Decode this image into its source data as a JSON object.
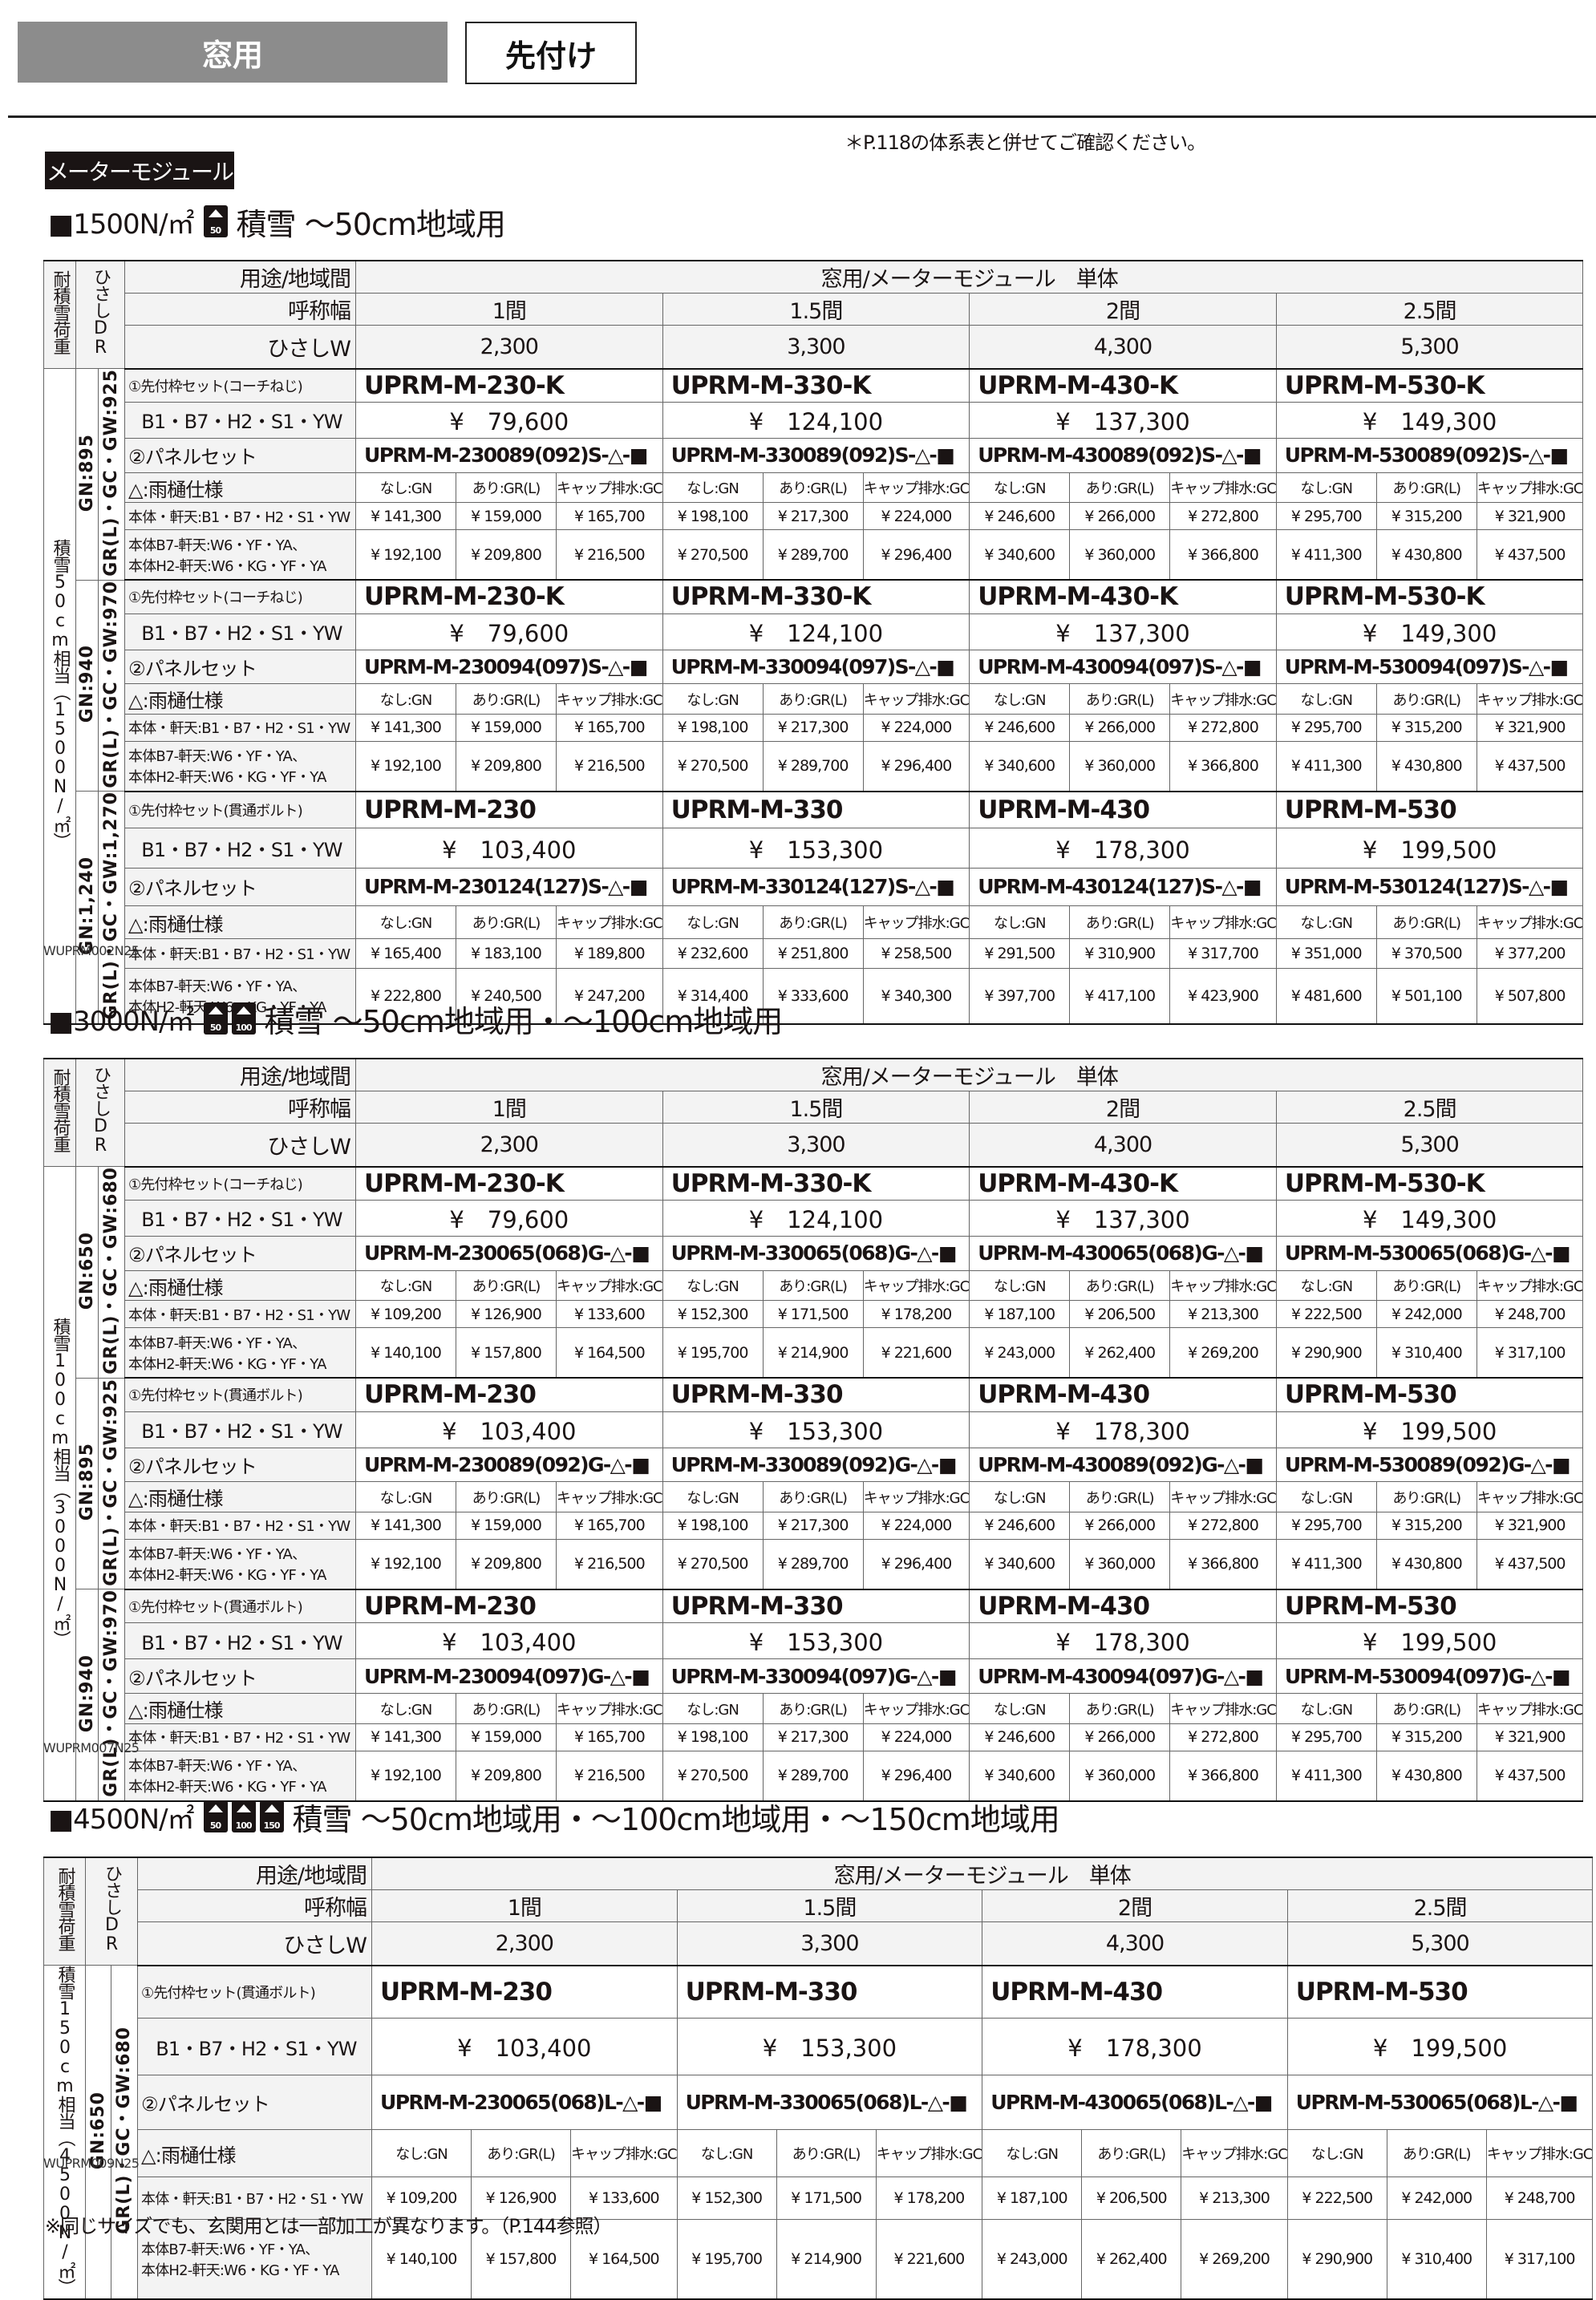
{
  "tabs": {
    "active": "窓用",
    "secondary": "先付け"
  },
  "note": "＊P.118の体系表と併せてご確認ください。",
  "module_label": "メーターモジュール",
  "footer_note": "※同じサイズでも、玄関用とは一部加工が異なります。（P.144参照）",
  "common": {
    "load_label": "耐積雪荷重",
    "dr_label": "ひさしDR",
    "usage_label": "用途/地域間",
    "usage_value": "窓用/メーターモジュール　単体",
    "width_label": "呼称幅",
    "widths": [
      "1間",
      "1.5間",
      "2間",
      "2.5間"
    ],
    "w_label": "ひさしW",
    "w_values": [
      "2,300",
      "3,300",
      "4,300",
      "5,300"
    ],
    "color_label": "B1・B7・H2・S1・YW",
    "panel_label": "②パネルセット",
    "gutter_label": "△:雨樋仕様",
    "gutter_options": [
      "なし:GN",
      "あり:GR(L)",
      "キャップ排水:GC"
    ],
    "price1_label": "本体・軒天:B1・B7・H2・S1・YW",
    "price2_label_1": "本体B7-軒天:W6・YF・YA、",
    "price2_label_2": "本体H2-軒天:W6・KG・YF・YA"
  },
  "tables": [
    {
      "heading_prefix": "■1500N/㎡",
      "badges": [
        "50"
      ],
      "heading_text": "積雪 〜50cm地域用",
      "load_text": "積雪50cm相当（1500N/㎡）",
      "code": "WUPRM002N25",
      "blocks": [
        {
          "dr": "GN:895",
          "gw": "GR(L)・GC・GW:925",
          "frame_label": "①先付枠セット(コーチねじ)",
          "frame_codes": [
            "UPRM-M-230-K",
            "UPRM-M-330-K",
            "UPRM-M-430-K",
            "UPRM-M-530-K"
          ],
          "frame_prices": [
            "¥　79,600",
            "¥　124,100",
            "¥　137,300",
            "¥　149,300"
          ],
          "panel_codes": [
            "UPRM-M-230089(092)S-△-■",
            "UPRM-M-330089(092)S-△-■",
            "UPRM-M-430089(092)S-△-■",
            "UPRM-M-530089(092)S-△-■"
          ],
          "price1": [
            "¥ 141,300",
            "¥ 159,000",
            "¥ 165,700",
            "¥ 198,100",
            "¥ 217,300",
            "¥ 224,000",
            "¥ 246,600",
            "¥ 266,000",
            "¥ 272,800",
            "¥ 295,700",
            "¥ 315,200",
            "¥ 321,900"
          ],
          "price2": [
            "¥ 192,100",
            "¥ 209,800",
            "¥ 216,500",
            "¥ 270,500",
            "¥ 289,700",
            "¥ 296,400",
            "¥ 340,600",
            "¥ 360,000",
            "¥ 366,800",
            "¥ 411,300",
            "¥ 430,800",
            "¥ 437,500"
          ]
        },
        {
          "dr": "GN:940",
          "gw": "GR(L)・GC・GW:970",
          "frame_label": "①先付枠セット(コーチねじ)",
          "frame_codes": [
            "UPRM-M-230-K",
            "UPRM-M-330-K",
            "UPRM-M-430-K",
            "UPRM-M-530-K"
          ],
          "frame_prices": [
            "¥　79,600",
            "¥　124,100",
            "¥　137,300",
            "¥　149,300"
          ],
          "panel_codes": [
            "UPRM-M-230094(097)S-△-■",
            "UPRM-M-330094(097)S-△-■",
            "UPRM-M-430094(097)S-△-■",
            "UPRM-M-530094(097)S-△-■"
          ],
          "price1": [
            "¥ 141,300",
            "¥ 159,000",
            "¥ 165,700",
            "¥ 198,100",
            "¥ 217,300",
            "¥ 224,000",
            "¥ 246,600",
            "¥ 266,000",
            "¥ 272,800",
            "¥ 295,700",
            "¥ 315,200",
            "¥ 321,900"
          ],
          "price2": [
            "¥ 192,100",
            "¥ 209,800",
            "¥ 216,500",
            "¥ 270,500",
            "¥ 289,700",
            "¥ 296,400",
            "¥ 340,600",
            "¥ 360,000",
            "¥ 366,800",
            "¥ 411,300",
            "¥ 430,800",
            "¥ 437,500"
          ]
        },
        {
          "dr": "GN:1,240",
          "gw": "GR(L)・GC・GW:1,270",
          "frame_label": "①先付枠セット(貫通ボルト)",
          "frame_codes": [
            "UPRM-M-230",
            "UPRM-M-330",
            "UPRM-M-430",
            "UPRM-M-530"
          ],
          "frame_prices": [
            "¥　103,400",
            "¥　153,300",
            "¥　178,300",
            "¥　199,500"
          ],
          "panel_codes": [
            "UPRM-M-230124(127)S-△-■",
            "UPRM-M-330124(127)S-△-■",
            "UPRM-M-430124(127)S-△-■",
            "UPRM-M-530124(127)S-△-■"
          ],
          "price1": [
            "¥ 165,400",
            "¥ 183,100",
            "¥ 189,800",
            "¥ 232,600",
            "¥ 251,800",
            "¥ 258,500",
            "¥ 291,500",
            "¥ 310,900",
            "¥ 317,700",
            "¥ 351,000",
            "¥ 370,500",
            "¥ 377,200"
          ],
          "price2": [
            "¥ 222,800",
            "¥ 240,500",
            "¥ 247,200",
            "¥ 314,400",
            "¥ 333,600",
            "¥ 340,300",
            "¥ 397,700",
            "¥ 417,100",
            "¥ 423,900",
            "¥ 481,600",
            "¥ 501,100",
            "¥ 507,800"
          ]
        }
      ]
    },
    {
      "heading_prefix": "■3000N/㎡",
      "badges": [
        "50",
        "100"
      ],
      "heading_text": "積雪 〜50cm地域用・〜100cm地域用",
      "load_text": "積雪100cm相当（3000N/㎡）",
      "code": "WUPRM007N25",
      "blocks": [
        {
          "dr": "GN:650",
          "gw": "GR(L)・GC・GW:680",
          "frame_label": "①先付枠セット(コーチねじ)",
          "frame_codes": [
            "UPRM-M-230-K",
            "UPRM-M-330-K",
            "UPRM-M-430-K",
            "UPRM-M-530-K"
          ],
          "frame_prices": [
            "¥　79,600",
            "¥　124,100",
            "¥　137,300",
            "¥　149,300"
          ],
          "panel_codes": [
            "UPRM-M-230065(068)G-△-■",
            "UPRM-M-330065(068)G-△-■",
            "UPRM-M-430065(068)G-△-■",
            "UPRM-M-530065(068)G-△-■"
          ],
          "price1": [
            "¥ 109,200",
            "¥ 126,900",
            "¥ 133,600",
            "¥ 152,300",
            "¥ 171,500",
            "¥ 178,200",
            "¥ 187,100",
            "¥ 206,500",
            "¥ 213,300",
            "¥ 222,500",
            "¥ 242,000",
            "¥ 248,700"
          ],
          "price2": [
            "¥ 140,100",
            "¥ 157,800",
            "¥ 164,500",
            "¥ 195,700",
            "¥ 214,900",
            "¥ 221,600",
            "¥ 243,000",
            "¥ 262,400",
            "¥ 269,200",
            "¥ 290,900",
            "¥ 310,400",
            "¥ 317,100"
          ]
        },
        {
          "dr": "GN:895",
          "gw": "GR(L)・GC・GW:925",
          "frame_label": "①先付枠セット(貫通ボルト)",
          "frame_codes": [
            "UPRM-M-230",
            "UPRM-M-330",
            "UPRM-M-430",
            "UPRM-M-530"
          ],
          "frame_prices": [
            "¥　103,400",
            "¥　153,300",
            "¥　178,300",
            "¥　199,500"
          ],
          "panel_codes": [
            "UPRM-M-230089(092)G-△-■",
            "UPRM-M-330089(092)G-△-■",
            "UPRM-M-430089(092)G-△-■",
            "UPRM-M-530089(092)G-△-■"
          ],
          "price1": [
            "¥ 141,300",
            "¥ 159,000",
            "¥ 165,700",
            "¥ 198,100",
            "¥ 217,300",
            "¥ 224,000",
            "¥ 246,600",
            "¥ 266,000",
            "¥ 272,800",
            "¥ 295,700",
            "¥ 315,200",
            "¥ 321,900"
          ],
          "price2": [
            "¥ 192,100",
            "¥ 209,800",
            "¥ 216,500",
            "¥ 270,500",
            "¥ 289,700",
            "¥ 296,400",
            "¥ 340,600",
            "¥ 360,000",
            "¥ 366,800",
            "¥ 411,300",
            "¥ 430,800",
            "¥ 437,500"
          ]
        },
        {
          "dr": "GN:940",
          "gw": "GR(L)・GC・GW:970",
          "frame_label": "①先付枠セット(貫通ボルト)",
          "frame_codes": [
            "UPRM-M-230",
            "UPRM-M-330",
            "UPRM-M-430",
            "UPRM-M-530"
          ],
          "frame_prices": [
            "¥　103,400",
            "¥　153,300",
            "¥　178,300",
            "¥　199,500"
          ],
          "panel_codes": [
            "UPRM-M-230094(097)G-△-■",
            "UPRM-M-330094(097)G-△-■",
            "UPRM-M-430094(097)G-△-■",
            "UPRM-M-530094(097)G-△-■"
          ],
          "price1": [
            "¥ 141,300",
            "¥ 159,000",
            "¥ 165,700",
            "¥ 198,100",
            "¥ 217,300",
            "¥ 224,000",
            "¥ 246,600",
            "¥ 266,000",
            "¥ 272,800",
            "¥ 295,700",
            "¥ 315,200",
            "¥ 321,900"
          ],
          "price2": [
            "¥ 192,100",
            "¥ 209,800",
            "¥ 216,500",
            "¥ 270,500",
            "¥ 289,700",
            "¥ 296,400",
            "¥ 340,600",
            "¥ 360,000",
            "¥ 366,800",
            "¥ 411,300",
            "¥ 430,800",
            "¥ 437,500"
          ]
        }
      ]
    },
    {
      "heading_prefix": "■4500N/㎡",
      "badges": [
        "50",
        "100",
        "150"
      ],
      "heading_text": "積雪 〜50cm地域用・〜100cm地域用・〜150cm地域用",
      "load_text": "積雪150cm相当（4500N/㎡）",
      "code": "WUPRM009N25",
      "blocks": [
        {
          "dr": "GN:650",
          "gw": "GR(L)・GC・GW:680",
          "frame_label": "①先付枠セット(貫通ボルト)",
          "frame_codes": [
            "UPRM-M-230",
            "UPRM-M-330",
            "UPRM-M-430",
            "UPRM-M-530"
          ],
          "frame_prices": [
            "¥　103,400",
            "¥　153,300",
            "¥　178,300",
            "¥　199,500"
          ],
          "panel_codes": [
            "UPRM-M-230065(068)L-△-■",
            "UPRM-M-330065(068)L-△-■",
            "UPRM-M-430065(068)L-△-■",
            "UPRM-M-530065(068)L-△-■"
          ],
          "price1": [
            "¥ 109,200",
            "¥ 126,900",
            "¥ 133,600",
            "¥ 152,300",
            "¥ 171,500",
            "¥ 178,200",
            "¥ 187,100",
            "¥ 206,500",
            "¥ 213,300",
            "¥ 222,500",
            "¥ 242,000",
            "¥ 248,700"
          ],
          "price2": [
            "¥ 140,100",
            "¥ 157,800",
            "¥ 164,500",
            "¥ 195,700",
            "¥ 214,900",
            "¥ 221,600",
            "¥ 243,000",
            "¥ 262,400",
            "¥ 269,200",
            "¥ 290,900",
            "¥ 310,400",
            "¥ 317,100"
          ]
        }
      ]
    }
  ]
}
